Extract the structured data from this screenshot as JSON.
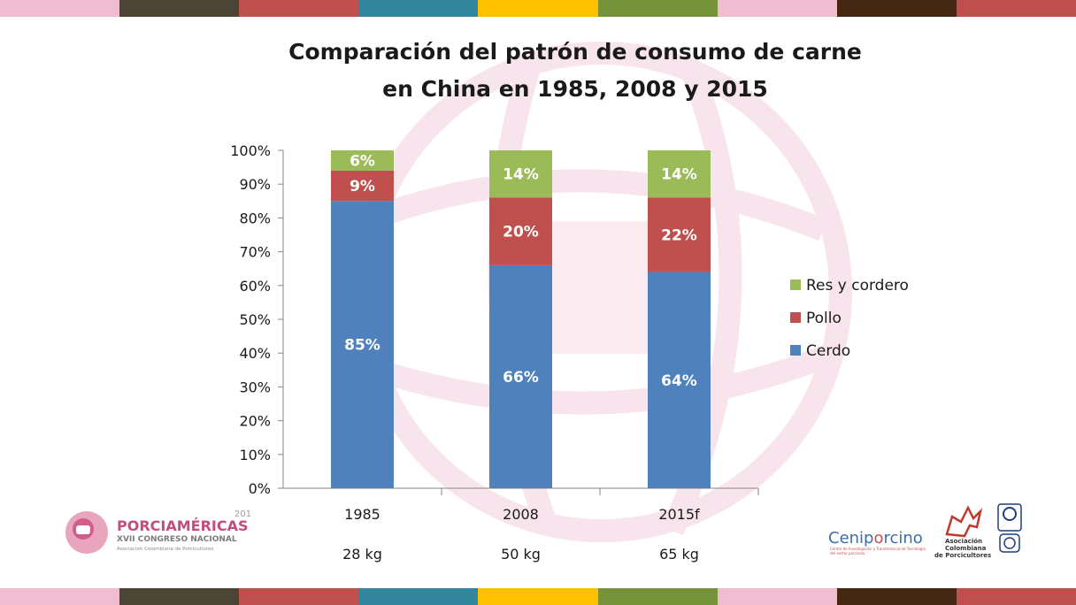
{
  "stripe_colors": [
    "#f0bcd0",
    "#4a4535",
    "#c0504d",
    "#31859c",
    "#ffc000",
    "#76933c",
    "#f0bcd0",
    "#432712",
    "#c0504d"
  ],
  "title_lines": [
    "Comparación del patrón de consumo de carne",
    "en China en 1985, 2008 y 2015"
  ],
  "chart_data": {
    "type": "bar",
    "stacked": true,
    "title": "Comparación del patrón de consumo de carne en China en 1985, 2008 y 2015",
    "categories": [
      "1985",
      "2008",
      "2015f"
    ],
    "category_sublabels": [
      "28 kg",
      "50 kg",
      "65 kg"
    ],
    "series": [
      {
        "name": "Cerdo",
        "color": "#4f81bd",
        "values": [
          85,
          66,
          64
        ],
        "labels": [
          "85%",
          "66%",
          "64%"
        ]
      },
      {
        "name": "Pollo",
        "color": "#c0504d",
        "values": [
          9,
          20,
          22
        ],
        "labels": [
          "9%",
          "20%",
          "22%"
        ]
      },
      {
        "name": "Res y cordero",
        "color": "#9bbb59",
        "values": [
          6,
          14,
          14
        ],
        "labels": [
          "6%",
          "14%",
          "14%"
        ]
      }
    ],
    "y_ticks": [
      "0%",
      "10%",
      "20%",
      "30%",
      "40%",
      "50%",
      "60%",
      "70%",
      "80%",
      "90%",
      "100%"
    ],
    "ylim": [
      0,
      100
    ],
    "legend_order": [
      "Res y cordero",
      "Pollo",
      "Cerdo"
    ],
    "legend_position": "right",
    "grid": false
  },
  "logos": {
    "porciamericas": {
      "year": "2014",
      "name": "PORCIAMÉRICAS",
      "subtitle": "XVII CONGRESO NACIONAL",
      "org": "Asociación Colombiana de Porcicultores"
    },
    "ceniporcino": {
      "name_a": "Cenip",
      "name_b": "rcino",
      "tagline": "Centro de Investigación y Transferencia de Tecnología del sector porcícola"
    },
    "asociacion": {
      "line1": "Asociación",
      "line2": "Colombiana",
      "line3": "de Porcicultores"
    }
  }
}
